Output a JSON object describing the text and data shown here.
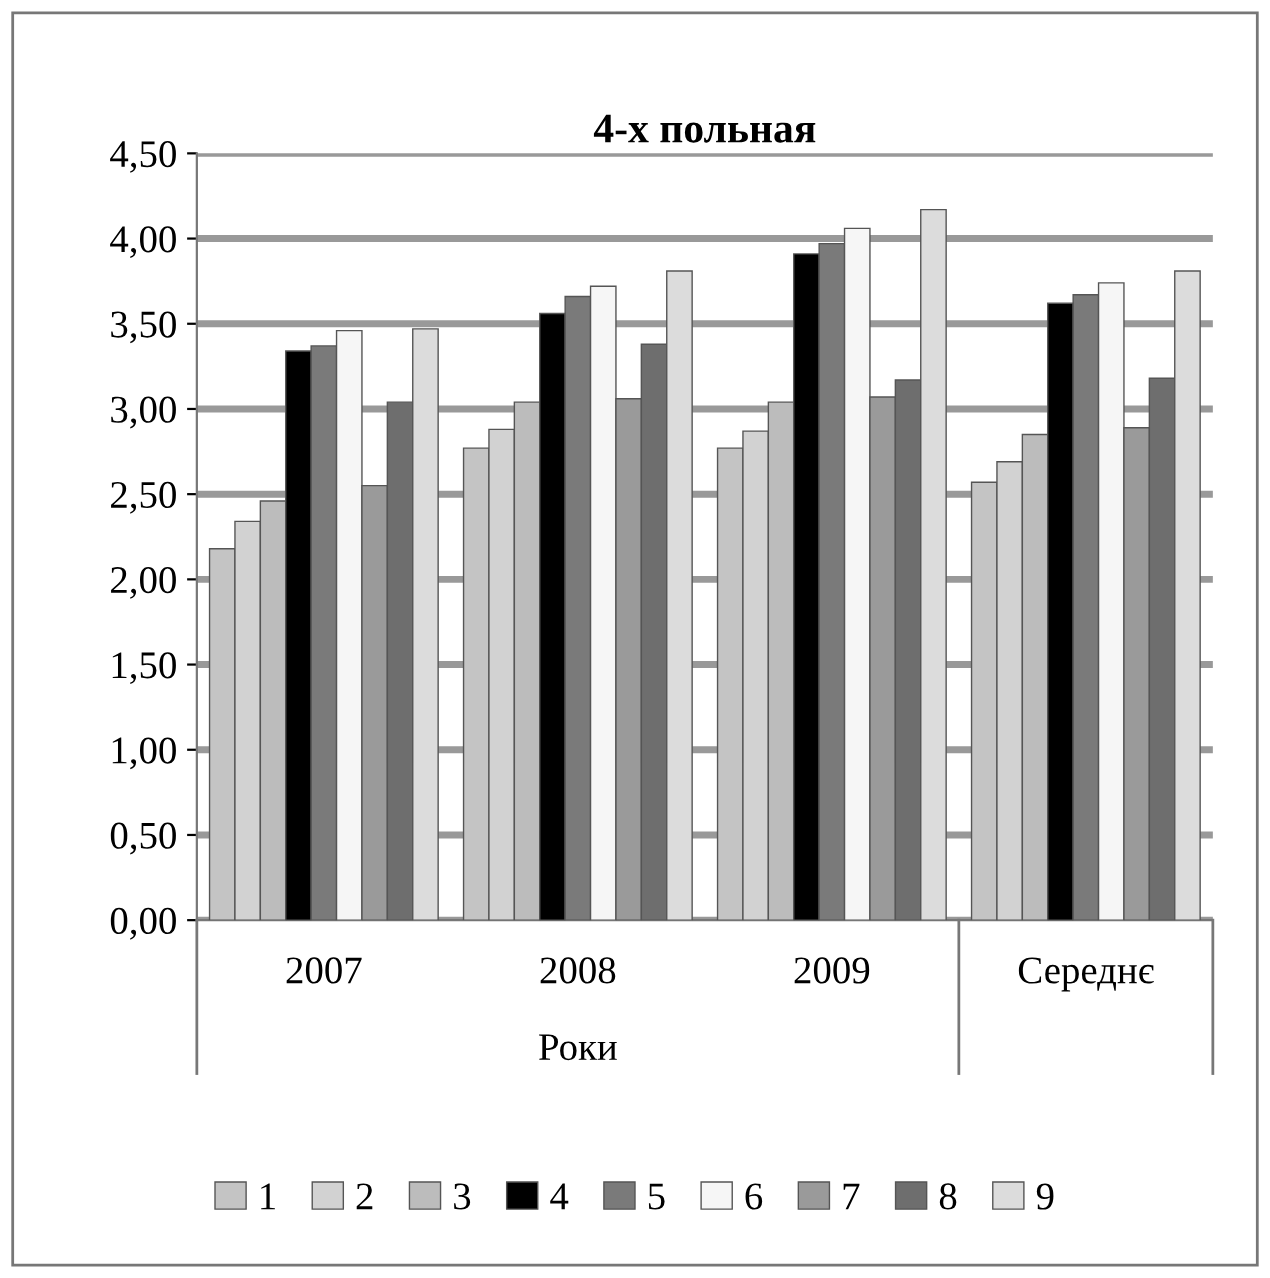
{
  "chart_data": {
    "type": "bar",
    "title": "4-х польная",
    "xlabel": "Роки",
    "categories": [
      "2007",
      "2008",
      "2009",
      "Середнє"
    ],
    "series": [
      {
        "name": "1",
        "color": "#c4c4c4",
        "values": [
          2.18,
          2.77,
          2.77,
          2.57
        ]
      },
      {
        "name": "2",
        "color": "#d2d2d2",
        "values": [
          2.34,
          2.88,
          2.87,
          2.69
        ]
      },
      {
        "name": "3",
        "color": "#bcbcbc",
        "values": [
          2.46,
          3.04,
          3.04,
          2.85
        ]
      },
      {
        "name": "4",
        "color": "#000000",
        "values": [
          3.34,
          3.56,
          3.91,
          3.62
        ]
      },
      {
        "name": "5",
        "color": "#7a7a7a",
        "values": [
          3.37,
          3.66,
          3.97,
          3.67
        ]
      },
      {
        "name": "6",
        "color": "#f6f6f6",
        "values": [
          3.46,
          3.72,
          4.06,
          3.74
        ]
      },
      {
        "name": "7",
        "color": "#9a9a9a",
        "values": [
          2.55,
          3.06,
          3.07,
          2.89
        ]
      },
      {
        "name": "8",
        "color": "#6e6e6e",
        "values": [
          3.04,
          3.38,
          3.17,
          3.18
        ]
      },
      {
        "name": "9",
        "color": "#dcdcdc",
        "values": [
          3.47,
          3.81,
          4.17,
          3.81
        ]
      }
    ],
    "ylim": [
      0,
      4.5
    ],
    "yticks": [
      {
        "value": 0,
        "label": "0,00"
      },
      {
        "value": 0.5,
        "label": "0,50"
      },
      {
        "value": 1,
        "label": "1,00"
      },
      {
        "value": 1.5,
        "label": "1,50"
      },
      {
        "value": 2,
        "label": "2,00"
      },
      {
        "value": 2.5,
        "label": "2,50"
      },
      {
        "value": 3,
        "label": "3,00"
      },
      {
        "value": 3.5,
        "label": "3,50"
      },
      {
        "value": 4,
        "label": "4,00"
      },
      {
        "value": 4.5,
        "label": "4,50"
      }
    ],
    "grid": "y",
    "legend": "bottom"
  }
}
